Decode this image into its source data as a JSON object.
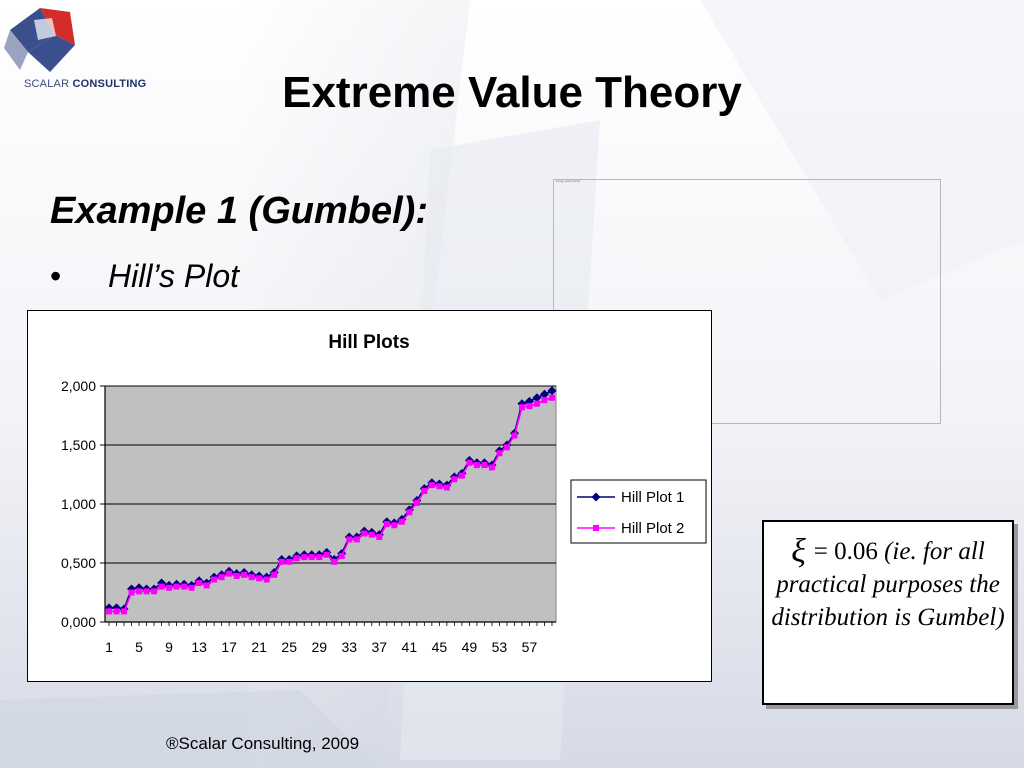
{
  "logo": {
    "text_1": "SCALAR",
    "text_2": "CONSULTING"
  },
  "slide": {
    "title": "Extreme Value Theory",
    "subtitle": "Example 1 (Gumbel):",
    "bullet_symbol": "•",
    "bullet_text": "Hill’s Plot",
    "placeholder_caption": "image placeholder",
    "note": {
      "symbol": "ξ",
      "equation": "= 0.06",
      "explanation": "(ie. for all practical purposes the distribution is Gumbel)"
    },
    "footer": "®Scalar Consulting, 2009"
  },
  "colors": {
    "plot_background": "#c0c0c0",
    "series_1": "#000080",
    "series_2": "#ff00ff",
    "slide_accent": "#d8dde8"
  },
  "chart_data": {
    "type": "line",
    "title": "Hill Plots",
    "xlabel": "",
    "ylabel": "",
    "ylim": [
      0,
      2
    ],
    "y_ticks": [
      0,
      0.5,
      1,
      1.5,
      2
    ],
    "y_tick_labels": [
      "0,000",
      "0,500",
      "1,000",
      "1,500",
      "2,000"
    ],
    "x": [
      1,
      2,
      3,
      4,
      5,
      6,
      7,
      8,
      9,
      10,
      11,
      12,
      13,
      14,
      15,
      16,
      17,
      18,
      19,
      20,
      21,
      22,
      23,
      24,
      25,
      26,
      27,
      28,
      29,
      30,
      31,
      32,
      33,
      34,
      35,
      36,
      37,
      38,
      39,
      40,
      41,
      42,
      43,
      44,
      45,
      46,
      47,
      48,
      49,
      50,
      51,
      52,
      53,
      54,
      55,
      56,
      57,
      58,
      59,
      60
    ],
    "x_tick_labels": [
      "1",
      "5",
      "9",
      "13",
      "17",
      "21",
      "25",
      "29",
      "33",
      "37",
      "41",
      "45",
      "49",
      "53",
      "57"
    ],
    "grid": "horizontal",
    "legend_position": "right",
    "series": [
      {
        "name": "Hill Plot 1",
        "marker": "diamond",
        "values": [
          0.12,
          0.12,
          0.11,
          0.28,
          0.29,
          0.28,
          0.28,
          0.33,
          0.31,
          0.32,
          0.32,
          0.31,
          0.35,
          0.33,
          0.38,
          0.4,
          0.43,
          0.41,
          0.42,
          0.4,
          0.39,
          0.38,
          0.42,
          0.53,
          0.53,
          0.56,
          0.57,
          0.57,
          0.57,
          0.59,
          0.53,
          0.58,
          0.72,
          0.72,
          0.77,
          0.76,
          0.74,
          0.85,
          0.84,
          0.87,
          0.95,
          1.03,
          1.13,
          1.18,
          1.17,
          1.16,
          1.23,
          1.26,
          1.37,
          1.35,
          1.35,
          1.33,
          1.45,
          1.5,
          1.6,
          1.85,
          1.87,
          1.9,
          1.93,
          1.96
        ]
      },
      {
        "name": "Hill Plot 2",
        "marker": "square",
        "values": [
          0.09,
          0.09,
          0.09,
          0.25,
          0.26,
          0.26,
          0.26,
          0.3,
          0.29,
          0.3,
          0.3,
          0.29,
          0.33,
          0.31,
          0.36,
          0.38,
          0.41,
          0.39,
          0.4,
          0.38,
          0.37,
          0.36,
          0.4,
          0.51,
          0.51,
          0.54,
          0.55,
          0.55,
          0.55,
          0.57,
          0.51,
          0.56,
          0.7,
          0.7,
          0.75,
          0.74,
          0.72,
          0.83,
          0.82,
          0.85,
          0.93,
          1.01,
          1.11,
          1.16,
          1.15,
          1.14,
          1.21,
          1.24,
          1.35,
          1.33,
          1.33,
          1.31,
          1.43,
          1.48,
          1.58,
          1.82,
          1.83,
          1.85,
          1.88,
          1.9
        ]
      }
    ]
  }
}
